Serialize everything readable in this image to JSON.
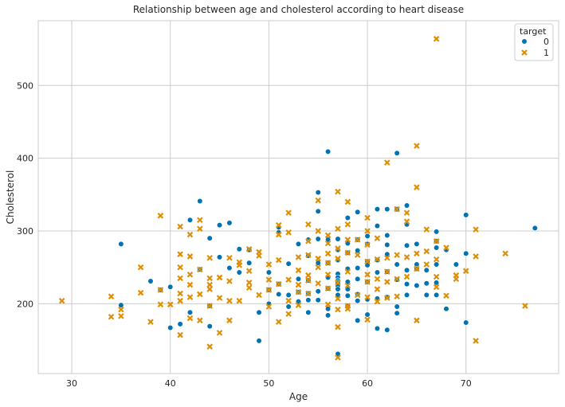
{
  "chart_data": {
    "type": "scatter",
    "title": "Relationship between age and cholesterol according to heart disease",
    "xlabel": "Age",
    "ylabel": "Cholesterol",
    "xlim": [
      26.6,
      79.4
    ],
    "ylim": [
      104,
      589
    ],
    "xticks": [
      30,
      40,
      50,
      60,
      70
    ],
    "yticks": [
      200,
      300,
      400,
      500
    ],
    "grid": true,
    "legend": {
      "title": "target",
      "position": "top-right"
    },
    "series": [
      {
        "name": "0",
        "color": "#0173b2",
        "marker": "circle",
        "points": [
          [
            35,
            282
          ],
          [
            35,
            198
          ],
          [
            38,
            231
          ],
          [
            39,
            219
          ],
          [
            40,
            223
          ],
          [
            40,
            167
          ],
          [
            41,
            172
          ],
          [
            42,
            315
          ],
          [
            42,
            188
          ],
          [
            43,
            341
          ],
          [
            43,
            247
          ],
          [
            44,
            290
          ],
          [
            44,
            197
          ],
          [
            44,
            169
          ],
          [
            45,
            308
          ],
          [
            45,
            264
          ],
          [
            46,
            311
          ],
          [
            46,
            249
          ],
          [
            47,
            275
          ],
          [
            47,
            243
          ],
          [
            48,
            274
          ],
          [
            48,
            256
          ],
          [
            49,
            188
          ],
          [
            49,
            149
          ],
          [
            50,
            243
          ],
          [
            50,
            219
          ],
          [
            50,
            200
          ],
          [
            51,
            305
          ],
          [
            51,
            298
          ],
          [
            51,
            227
          ],
          [
            51,
            213
          ],
          [
            52,
            255
          ],
          [
            52,
            212
          ],
          [
            52,
            196
          ],
          [
            53,
            282
          ],
          [
            53,
            234
          ],
          [
            53,
            216
          ],
          [
            53,
            203
          ],
          [
            54,
            288
          ],
          [
            54,
            266
          ],
          [
            54,
            232
          ],
          [
            54,
            214
          ],
          [
            54,
            205
          ],
          [
            54,
            188
          ],
          [
            55,
            353
          ],
          [
            55,
            327
          ],
          [
            55,
            289
          ],
          [
            55,
            256
          ],
          [
            55,
            217
          ],
          [
            55,
            205
          ],
          [
            56,
            409
          ],
          [
            56,
            288
          ],
          [
            56,
            256
          ],
          [
            56,
            236
          ],
          [
            56,
            221
          ],
          [
            56,
            193
          ],
          [
            56,
            184
          ],
          [
            57,
            289
          ],
          [
            57,
            274
          ],
          [
            57,
            260
          ],
          [
            57,
            241
          ],
          [
            57,
            236
          ],
          [
            57,
            232
          ],
          [
            57,
            229
          ],
          [
            57,
            224
          ],
          [
            57,
            220
          ],
          [
            57,
            212
          ],
          [
            57,
            131
          ],
          [
            58,
            318
          ],
          [
            58,
            283
          ],
          [
            58,
            270
          ],
          [
            58,
            248
          ],
          [
            58,
            230
          ],
          [
            58,
            220
          ],
          [
            58,
            211
          ],
          [
            58,
            197
          ],
          [
            59,
            326
          ],
          [
            59,
            288
          ],
          [
            59,
            273
          ],
          [
            59,
            249
          ],
          [
            59,
            234
          ],
          [
            59,
            213
          ],
          [
            59,
            204
          ],
          [
            59,
            177
          ],
          [
            60,
            293
          ],
          [
            60,
            282
          ],
          [
            60,
            258
          ],
          [
            60,
            253
          ],
          [
            60,
            230
          ],
          [
            60,
            206
          ],
          [
            60,
            185
          ],
          [
            61,
            330
          ],
          [
            61,
            307
          ],
          [
            61,
            260
          ],
          [
            61,
            243
          ],
          [
            61,
            207
          ],
          [
            61,
            166
          ],
          [
            62,
            330
          ],
          [
            62,
            294
          ],
          [
            62,
            281
          ],
          [
            62,
            268
          ],
          [
            62,
            244
          ],
          [
            62,
            209
          ],
          [
            62,
            164
          ],
          [
            63,
            407
          ],
          [
            63,
            330
          ],
          [
            63,
            254
          ],
          [
            63,
            233
          ],
          [
            63,
            196
          ],
          [
            63,
            187
          ],
          [
            64,
            335
          ],
          [
            64,
            309
          ],
          [
            64,
            280
          ],
          [
            64,
            246
          ],
          [
            64,
            227
          ],
          [
            64,
            212
          ],
          [
            65,
            282
          ],
          [
            65,
            254
          ],
          [
            65,
            248
          ],
          [
            65,
            225
          ],
          [
            66,
            246
          ],
          [
            66,
            228
          ],
          [
            66,
            212
          ],
          [
            67,
            299
          ],
          [
            67,
            286
          ],
          [
            67,
            277
          ],
          [
            67,
            254
          ],
          [
            67,
            229
          ],
          [
            67,
            212
          ],
          [
            68,
            274
          ],
          [
            68,
            193
          ],
          [
            69,
            254
          ],
          [
            70,
            322
          ],
          [
            70,
            269
          ],
          [
            70,
            174
          ],
          [
            77,
            304
          ]
        ]
      },
      {
        "name": "1",
        "color": "#de8f05",
        "marker": "x",
        "points": [
          [
            29,
            204
          ],
          [
            34,
            210
          ],
          [
            34,
            182
          ],
          [
            35,
            192
          ],
          [
            35,
            183
          ],
          [
            37,
            250
          ],
          [
            37,
            215
          ],
          [
            38,
            175
          ],
          [
            39,
            321
          ],
          [
            39,
            219
          ],
          [
            39,
            199
          ],
          [
            40,
            199
          ],
          [
            41,
            306
          ],
          [
            41,
            268
          ],
          [
            41,
            250
          ],
          [
            41,
            235
          ],
          [
            41,
            214
          ],
          [
            41,
            204
          ],
          [
            41,
            157
          ],
          [
            42,
            295
          ],
          [
            42,
            265
          ],
          [
            42,
            240
          ],
          [
            42,
            226
          ],
          [
            42,
            209
          ],
          [
            42,
            180
          ],
          [
            43,
            315
          ],
          [
            43,
            303
          ],
          [
            43,
            247
          ],
          [
            43,
            213
          ],
          [
            43,
            177
          ],
          [
            44,
            263
          ],
          [
            44,
            235
          ],
          [
            44,
            226
          ],
          [
            44,
            220
          ],
          [
            44,
            197
          ],
          [
            44,
            141
          ],
          [
            45,
            236
          ],
          [
            45,
            208
          ],
          [
            45,
            160
          ],
          [
            46,
            263
          ],
          [
            46,
            231
          ],
          [
            46,
            204
          ],
          [
            46,
            177
          ],
          [
            47,
            257
          ],
          [
            47,
            253
          ],
          [
            47,
            204
          ],
          [
            48,
            275
          ],
          [
            48,
            245
          ],
          [
            48,
            229
          ],
          [
            48,
            222
          ],
          [
            49,
            271
          ],
          [
            49,
            266
          ],
          [
            49,
            212
          ],
          [
            50,
            254
          ],
          [
            50,
            233
          ],
          [
            50,
            219
          ],
          [
            50,
            196
          ],
          [
            51,
            308
          ],
          [
            51,
            295
          ],
          [
            51,
            260
          ],
          [
            51,
            227
          ],
          [
            51,
            175
          ],
          [
            52,
            325
          ],
          [
            52,
            298
          ],
          [
            52,
            233
          ],
          [
            52,
            204
          ],
          [
            52,
            186
          ],
          [
            53,
            264
          ],
          [
            53,
            246
          ],
          [
            53,
            226
          ],
          [
            53,
            216
          ],
          [
            53,
            198
          ],
          [
            54,
            309
          ],
          [
            54,
            286
          ],
          [
            54,
            267
          ],
          [
            54,
            239
          ],
          [
            54,
            232
          ],
          [
            54,
            214
          ],
          [
            55,
            342
          ],
          [
            55,
            300
          ],
          [
            55,
            262
          ],
          [
            55,
            250
          ],
          [
            55,
            228
          ],
          [
            56,
            294
          ],
          [
            56,
            283
          ],
          [
            56,
            269
          ],
          [
            56,
            256
          ],
          [
            56,
            240
          ],
          [
            56,
            221
          ],
          [
            56,
            199
          ],
          [
            57,
            354
          ],
          [
            57,
            303
          ],
          [
            57,
            276
          ],
          [
            57,
            262
          ],
          [
            57,
            229
          ],
          [
            57,
            207
          ],
          [
            57,
            192
          ],
          [
            57,
            168
          ],
          [
            57,
            126
          ],
          [
            58,
            340
          ],
          [
            58,
            309
          ],
          [
            58,
            288
          ],
          [
            58,
            270
          ],
          [
            58,
            244
          ],
          [
            58,
            225
          ],
          [
            58,
            197
          ],
          [
            58,
            193
          ],
          [
            59,
            288
          ],
          [
            59,
            267
          ],
          [
            59,
            212
          ],
          [
            60,
            318
          ],
          [
            60,
            300
          ],
          [
            60,
            281
          ],
          [
            60,
            258
          ],
          [
            60,
            240
          ],
          [
            60,
            230
          ],
          [
            60,
            209
          ],
          [
            60,
            178
          ],
          [
            61,
            290
          ],
          [
            61,
            261
          ],
          [
            61,
            234
          ],
          [
            61,
            220
          ],
          [
            61,
            203
          ],
          [
            62,
            394
          ],
          [
            62,
            263
          ],
          [
            62,
            244
          ],
          [
            62,
            230
          ],
          [
            62,
            208
          ],
          [
            63,
            330
          ],
          [
            63,
            267
          ],
          [
            63,
            234
          ],
          [
            63,
            210
          ],
          [
            64,
            325
          ],
          [
            64,
            313
          ],
          [
            64,
            264
          ],
          [
            64,
            237
          ],
          [
            65,
            417
          ],
          [
            65,
            360
          ],
          [
            65,
            269
          ],
          [
            65,
            248
          ],
          [
            65,
            177
          ],
          [
            66,
            302
          ],
          [
            66,
            272
          ],
          [
            66,
            254
          ],
          [
            67,
            564
          ],
          [
            67,
            286
          ],
          [
            67,
            261
          ],
          [
            67,
            237
          ],
          [
            67,
            223
          ],
          [
            68,
            277
          ],
          [
            68,
            211
          ],
          [
            69,
            239
          ],
          [
            69,
            234
          ],
          [
            70,
            245
          ],
          [
            71,
            302
          ],
          [
            71,
            265
          ],
          [
            71,
            149
          ],
          [
            74,
            269
          ],
          [
            76,
            197
          ]
        ]
      }
    ]
  }
}
